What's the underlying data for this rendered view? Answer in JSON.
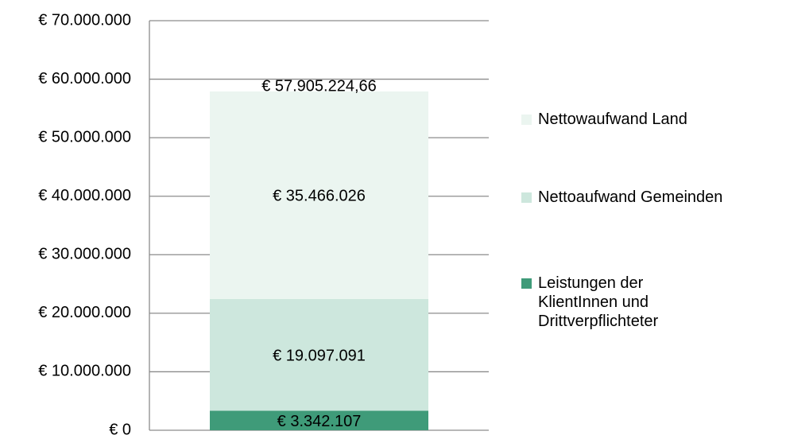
{
  "chart_data": {
    "type": "stacked_bar",
    "categories": [
      null
    ],
    "series": [
      {
        "name": "Leistungen der KlientInnen und Drittverpflichteter",
        "color": "#3f9b79",
        "values": [
          3342107
        ],
        "value_labels": [
          "€ 3.342.107"
        ]
      },
      {
        "name": "Nettoaufwand Gemeinden",
        "color": "#cde7dd",
        "values": [
          19097091
        ],
        "value_labels": [
          "€ 19.097.091"
        ]
      },
      {
        "name": "Nettowaufwand Land",
        "color": "#ebf5f0",
        "values": [
          35466026
        ],
        "value_labels": [
          "€ 35.466.026"
        ]
      }
    ],
    "total_value": 57905224.66,
    "total_label": "€ 57.905.224,66",
    "ylim": [
      0,
      70000000
    ],
    "yticks": [
      {
        "value": 0,
        "label": "€ 0"
      },
      {
        "value": 10000000,
        "label": "€ 10.000.000"
      },
      {
        "value": 20000000,
        "label": "€ 20.000.000"
      },
      {
        "value": 30000000,
        "label": "€ 30.000.000"
      },
      {
        "value": 40000000,
        "label": "€ 40.000.000"
      },
      {
        "value": 50000000,
        "label": "€ 50.000.000"
      },
      {
        "value": 60000000,
        "label": "€ 60.000.000"
      },
      {
        "value": 70000000,
        "label": "€ 70.000.000"
      }
    ],
    "grid": true,
    "legend": "right"
  }
}
